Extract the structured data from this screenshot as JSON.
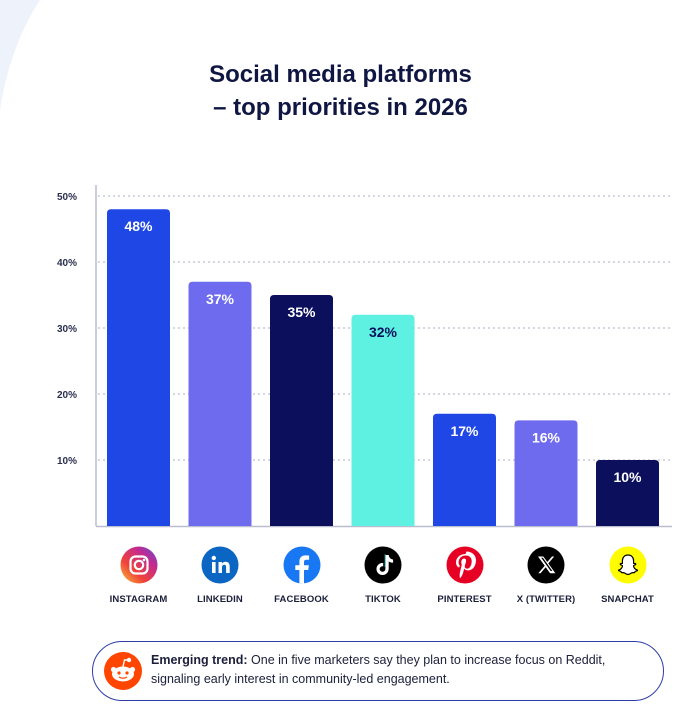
{
  "chart_data": {
    "type": "bar",
    "title_line1": "Social media platforms",
    "title_line2": "– top priorities in 2026",
    "categories": [
      "INSTAGRAM",
      "LINKEDIN",
      "FACEBOOK",
      "TIKTOK",
      "PINTEREST",
      "X (TWITTER)",
      "SNAPCHAT"
    ],
    "values": [
      48,
      37,
      35,
      32,
      17,
      16,
      10
    ],
    "data_labels": [
      "48%",
      "37%",
      "35%",
      "32%",
      "17%",
      "16%",
      "10%"
    ],
    "bar_colors": [
      "#1f47e6",
      "#6f6bef",
      "#0c0f5c",
      "#5ef0e1",
      "#1f47e6",
      "#6f6bef",
      "#0c0f5c"
    ],
    "label_colors": [
      "#ffffff",
      "#ffffff",
      "#ffffff",
      "#0c0f5c",
      "#ffffff",
      "#ffffff",
      "#ffffff"
    ],
    "yticks": [
      10,
      20,
      30,
      40,
      50
    ],
    "ytick_labels": [
      "10%",
      "20%",
      "30%",
      "40%",
      "50%"
    ],
    "ylim": [
      0,
      52
    ],
    "grid": true,
    "xlabel": "",
    "ylabel": ""
  },
  "platforms": [
    {
      "label": "INSTAGRAM",
      "icon": "instagram-icon"
    },
    {
      "label": "LINKEDIN",
      "icon": "linkedin-icon"
    },
    {
      "label": "FACEBOOK",
      "icon": "facebook-icon"
    },
    {
      "label": "TIKTOK",
      "icon": "tiktok-icon"
    },
    {
      "label": "PINTEREST",
      "icon": "pinterest-icon"
    },
    {
      "label": "X (TWITTER)",
      "icon": "x-icon"
    },
    {
      "label": "SNAPCHAT",
      "icon": "snapchat-icon"
    }
  ],
  "callout": {
    "lead": "Emerging trend:",
    "text": " One in five marketers say they plan to increase focus on Reddit, signaling early interest in community-led engagement.",
    "icon": "reddit-icon"
  },
  "colors": {
    "title": "#0f1642",
    "axis": "#b9bdd0",
    "grid": "#a9adc4"
  }
}
